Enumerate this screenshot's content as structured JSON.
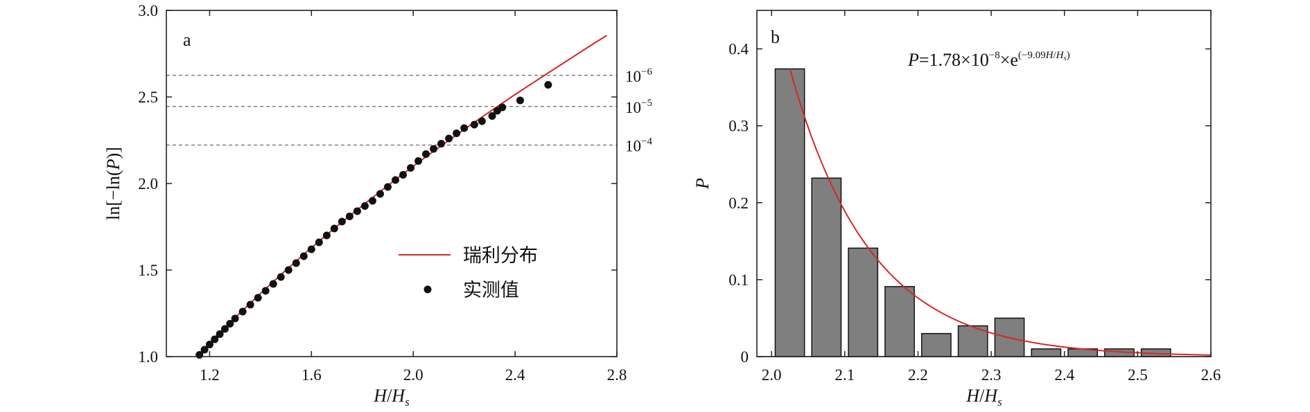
{
  "colors": {
    "fit": "#d62728",
    "points": "#111111",
    "bar_fill": "#7f7f7f",
    "bar_edge": "#111111",
    "ref_line": "#808080"
  },
  "chart_data": [
    {
      "type": "scatter",
      "panel_label": "a",
      "xlabel": {
        "italic1": "H",
        "slash": "/",
        "italic2": "H",
        "sub": "s"
      },
      "ylabel": {
        "pre": "ln[−ln(",
        "italic": "P",
        "post": ")]"
      },
      "xlim": [
        1.03,
        2.8
      ],
      "ylim": [
        1.0,
        3.0
      ],
      "xticks": [
        1.2,
        1.6,
        2.0,
        2.4,
        2.8
      ],
      "xtick_labels": [
        "1.2",
        "1.6",
        "2.0",
        "2.4",
        "2.8"
      ],
      "yticks": [
        1.0,
        1.5,
        2.0,
        2.5,
        3.0
      ],
      "ytick_labels": [
        "1.0",
        "1.5",
        "2.0",
        "2.5",
        "3.0"
      ],
      "ref_lines": [
        {
          "y": 2.625,
          "base": "10",
          "exp": "−6"
        },
        {
          "y": 2.445,
          "base": "10",
          "exp": "−5"
        },
        {
          "y": 2.222,
          "base": "10",
          "exp": "−4"
        }
      ],
      "series": [
        {
          "name": "瑞利分布",
          "kind": "line",
          "x": [
            1.15,
            1.2,
            1.3,
            1.4,
            1.5,
            1.6,
            1.7,
            1.8,
            1.9,
            2.0,
            2.1,
            2.2,
            2.3,
            2.4,
            2.5,
            2.6,
            2.7,
            2.76
          ],
          "y": [
            1.0,
            1.077,
            1.225,
            1.365,
            1.5,
            1.629,
            1.753,
            1.872,
            1.988,
            2.1,
            2.208,
            2.312,
            2.414,
            2.514,
            2.61,
            2.705,
            2.8,
            2.855
          ]
        },
        {
          "name": "实测值",
          "kind": "points",
          "x": [
            1.16,
            1.18,
            1.2,
            1.22,
            1.24,
            1.26,
            1.28,
            1.3,
            1.33,
            1.36,
            1.39,
            1.42,
            1.45,
            1.48,
            1.51,
            1.54,
            1.57,
            1.6,
            1.63,
            1.66,
            1.69,
            1.72,
            1.75,
            1.78,
            1.81,
            1.84,
            1.87,
            1.9,
            1.93,
            1.96,
            1.99,
            2.02,
            2.05,
            2.08,
            2.11,
            2.14,
            2.17,
            2.2,
            2.24,
            2.27,
            2.31,
            2.33,
            2.35,
            2.42,
            2.53
          ],
          "y": [
            1.01,
            1.04,
            1.07,
            1.1,
            1.13,
            1.16,
            1.19,
            1.22,
            1.26,
            1.3,
            1.34,
            1.38,
            1.42,
            1.46,
            1.5,
            1.54,
            1.58,
            1.62,
            1.66,
            1.7,
            1.74,
            1.78,
            1.81,
            1.84,
            1.87,
            1.9,
            1.94,
            1.98,
            2.02,
            2.05,
            2.09,
            2.13,
            2.17,
            2.2,
            2.23,
            2.26,
            2.29,
            2.32,
            2.34,
            2.36,
            2.39,
            2.42,
            2.44,
            2.48,
            2.57
          ]
        }
      ]
    },
    {
      "type": "bar",
      "panel_label": "b",
      "xlabel": {
        "italic1": "H",
        "slash": "/",
        "italic2": "H",
        "sub": "s"
      },
      "ylabel": {
        "italic": "P"
      },
      "xlim": [
        1.98,
        2.6
      ],
      "ylim": [
        0,
        0.45
      ],
      "xticks": [
        2.0,
        2.1,
        2.2,
        2.3,
        2.4,
        2.5,
        2.6
      ],
      "xtick_labels": [
        "2.0",
        "2.1",
        "2.2",
        "2.3",
        "2.4",
        "2.5",
        "2.6"
      ],
      "yticks": [
        0,
        0.1,
        0.2,
        0.3,
        0.4
      ],
      "ytick_labels": [
        "0",
        "0.1",
        "0.2",
        "0.3",
        "0.4"
      ],
      "equation": {
        "p": "P",
        "eq": "=1.78×10",
        "exp1": "−8",
        "times_e": "×e",
        "exp2_pre": "(−9.09",
        "exp2_h": "H",
        "exp2_slash": "/",
        "exp2_hs": "H",
        "exp2_sub": "s",
        "exp2_post": ")"
      },
      "bin_width": 0.04,
      "bars": {
        "x": [
          2.025,
          2.075,
          2.125,
          2.175,
          2.225,
          2.275,
          2.325,
          2.375,
          2.425,
          2.475,
          2.525
        ],
        "values": [
          0.374,
          0.232,
          0.141,
          0.091,
          0.03,
          0.04,
          0.05,
          0.01,
          0.01,
          0.01,
          0.01
        ]
      },
      "fit": {
        "a": 1.78e-08,
        "b": 9.09,
        "x_from": 2.025,
        "x_to": 2.6
      }
    }
  ]
}
